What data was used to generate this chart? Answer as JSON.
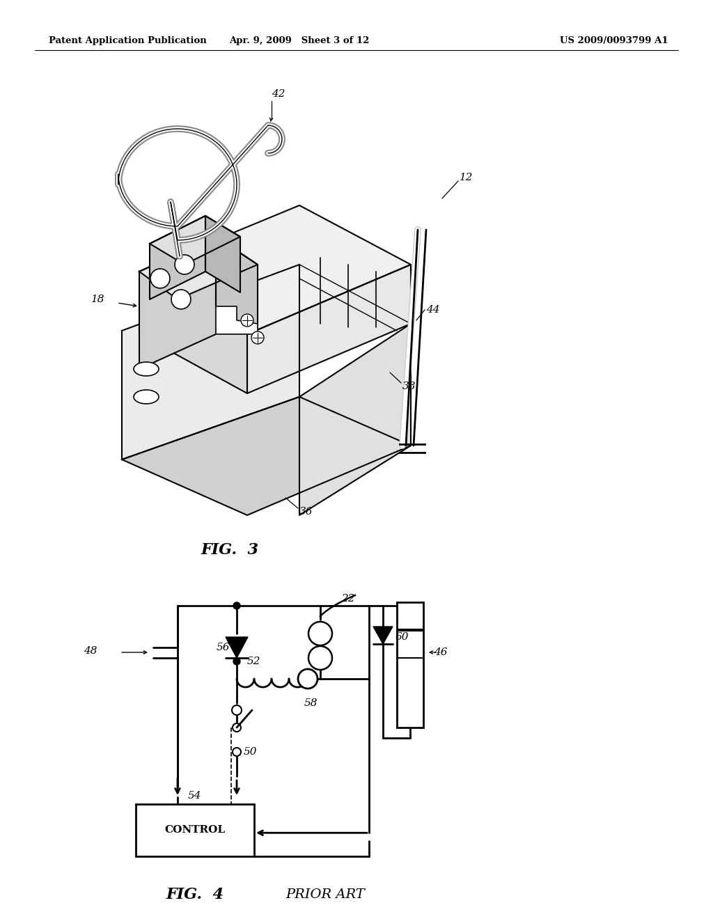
{
  "bg_color": "#ffffff",
  "line_color": "#000000",
  "header_left": "Patent Application Publication",
  "header_mid": "Apr. 9, 2009   Sheet 3 of 12",
  "header_right": "US 2009/0093799 A1",
  "fig3_label": "FIG.  3",
  "fig4_label": "FIG.  4",
  "prior_art_label": "PRIOR ART",
  "control_label": "CONTROL"
}
